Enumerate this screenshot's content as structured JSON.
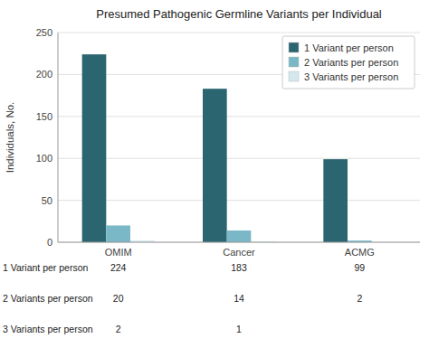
{
  "chart_data": {
    "type": "bar",
    "title": "Presumed Pathogenic Germline Variants per Individual",
    "ylabel": "Individuals, No.",
    "categories": [
      "OMIM",
      "Cancer",
      "ACMG"
    ],
    "series": [
      {
        "name": "1 Variant per person",
        "color": "#2b6570",
        "values": [
          224,
          183,
          99
        ]
      },
      {
        "name": "2 Variants per person",
        "color": "#7ab8c8",
        "values": [
          20,
          14,
          2
        ]
      },
      {
        "name": "3 Variants per person",
        "color": "#d4e8ee",
        "values": [
          2,
          1,
          0
        ]
      }
    ],
    "ylim": [
      0,
      250
    ],
    "yticks": [
      0,
      50,
      100,
      150,
      200,
      250
    ],
    "grid": true,
    "legend": "upper right",
    "table": [
      {
        "label": "1 Variant per person",
        "values": [
          224,
          183,
          99
        ]
      },
      {
        "label": "2 Variants per person",
        "values": [
          20,
          14,
          2
        ]
      },
      {
        "label": "3 Variants per person",
        "values": [
          2,
          1,
          null
        ]
      }
    ]
  }
}
